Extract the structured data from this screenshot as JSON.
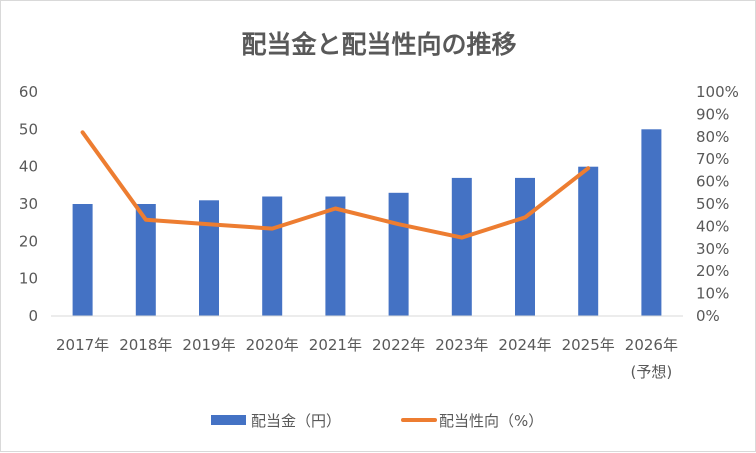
{
  "chart_data": {
    "type": "bar",
    "title": "配当金と配当性向の推移",
    "categories": [
      "2017年",
      "2018年",
      "2019年",
      "2020年",
      "2021年",
      "2022年",
      "2023年",
      "2024年",
      "2025年",
      "2026年\n(予想)"
    ],
    "series": [
      {
        "name": "配当金（円）",
        "type": "bar",
        "axis": "left",
        "color": "#4472c4",
        "values": [
          30,
          30,
          31,
          32,
          32,
          33,
          37,
          37,
          40,
          50
        ]
      },
      {
        "name": "配当性向（%）",
        "type": "line",
        "axis": "right",
        "color": "#ed7d31",
        "values": [
          82,
          43,
          41,
          39,
          48,
          41,
          35,
          44,
          66,
          null
        ]
      }
    ],
    "y_left": {
      "min": 0,
      "max": 60,
      "step": 10
    },
    "y_right": {
      "min": 0,
      "max": 100,
      "step": 10,
      "suffix": "%"
    },
    "grid": false,
    "legend_position": "bottom"
  }
}
